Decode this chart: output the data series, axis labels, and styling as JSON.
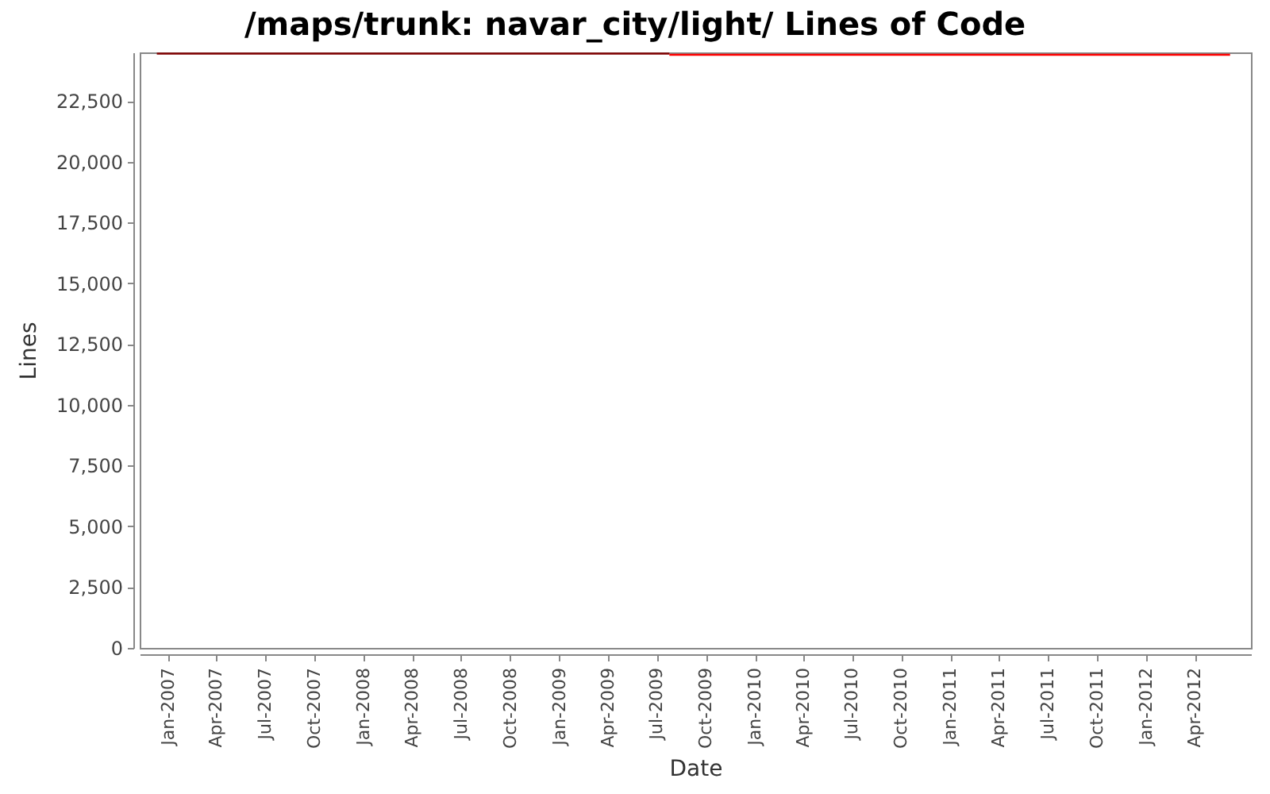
{
  "chart_data": {
    "type": "line",
    "title": "/maps/trunk: navar_city/light/ Lines of Code",
    "xlabel": "Date",
    "ylabel": "Lines",
    "xlim": [
      "2006-11-09",
      "2012-07-15"
    ],
    "ylim": [
      0,
      24500
    ],
    "xticks": [
      {
        "value": "2007-01",
        "label": "Jan-2007"
      },
      {
        "value": "2007-04",
        "label": "Apr-2007"
      },
      {
        "value": "2007-07",
        "label": "Jul-2007"
      },
      {
        "value": "2007-10",
        "label": "Oct-2007"
      },
      {
        "value": "2008-01",
        "label": "Jan-2008"
      },
      {
        "value": "2008-04",
        "label": "Apr-2008"
      },
      {
        "value": "2008-07",
        "label": "Jul-2008"
      },
      {
        "value": "2008-10",
        "label": "Oct-2008"
      },
      {
        "value": "2009-01",
        "label": "Jan-2009"
      },
      {
        "value": "2009-04",
        "label": "Apr-2009"
      },
      {
        "value": "2009-07",
        "label": "Jul-2009"
      },
      {
        "value": "2009-10",
        "label": "Oct-2009"
      },
      {
        "value": "2010-01",
        "label": "Jan-2010"
      },
      {
        "value": "2010-04",
        "label": "Apr-2010"
      },
      {
        "value": "2010-07",
        "label": "Jul-2010"
      },
      {
        "value": "2010-10",
        "label": "Oct-2010"
      },
      {
        "value": "2011-01",
        "label": "Jan-2011"
      },
      {
        "value": "2011-04",
        "label": "Apr-2011"
      },
      {
        "value": "2011-07",
        "label": "Jul-2011"
      },
      {
        "value": "2011-10",
        "label": "Oct-2011"
      },
      {
        "value": "2012-01",
        "label": "Jan-2012"
      },
      {
        "value": "2012-04",
        "label": "Apr-2012"
      }
    ],
    "yticks": [
      0,
      {
        "value": 2500,
        "label": "2,500"
      },
      {
        "value": 5000,
        "label": "5,000"
      },
      {
        "value": 7500,
        "label": "7,500"
      },
      {
        "value": 10000,
        "label": "10,000"
      },
      {
        "value": 12500,
        "label": "12,500"
      },
      {
        "value": 15000,
        "label": "15,000"
      },
      {
        "value": 17500,
        "label": "17,500"
      },
      {
        "value": 20000,
        "label": "20,000"
      },
      {
        "value": 22500,
        "label": "22,500"
      }
    ],
    "series": [
      {
        "color": "#800000",
        "x": [
          "2006-12-11",
          "2009-07-25"
        ],
        "values": [
          24450,
          24450
        ]
      },
      {
        "color": "#ff0000",
        "x": [
          "2009-07-25",
          "2012-06-06"
        ],
        "values": [
          24400,
          24400
        ]
      }
    ]
  }
}
